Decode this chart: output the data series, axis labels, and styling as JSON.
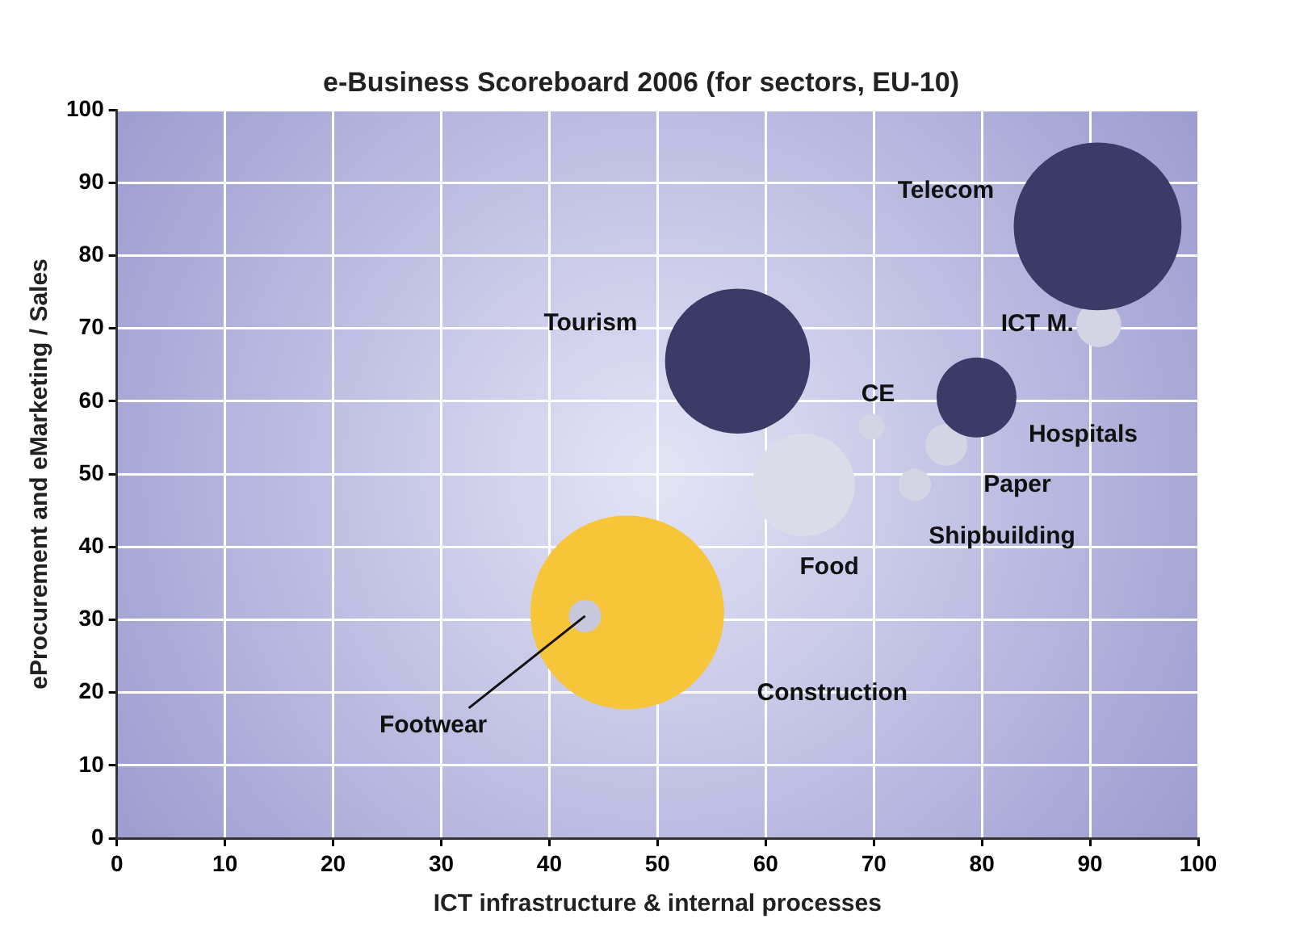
{
  "chart_data": {
    "type": "bubble",
    "title": "e-Business Scoreboard 2006 (for sectors, EU-10)",
    "xlabel": "ICT infrastructure & internal processes",
    "ylabel": "eProcurement and eMarketing / Sales",
    "xlim": [
      0,
      100
    ],
    "xticks": [
      0,
      10,
      20,
      30,
      40,
      50,
      60,
      70,
      80,
      90,
      100
    ],
    "ylim": [
      0,
      100
    ],
    "yticks": [
      0,
      10,
      20,
      30,
      40,
      50,
      60,
      70,
      80,
      90,
      100
    ],
    "grid": true,
    "legend": false,
    "series": [
      {
        "name": "Telecom",
        "color": "#3b3b68",
        "x": [
          90.7
        ],
        "values": [
          84
        ],
        "sizes": [
          0.75
        ]
      },
      {
        "name": "Tourism",
        "color": "#3b3b68",
        "x": [
          57.4
        ],
        "values": [
          65.5
        ],
        "sizes": [
          0.56
        ]
      },
      {
        "name": "ICT M.",
        "color": "#d4d4e4",
        "x": [
          90.8
        ],
        "values": [
          70.5
        ],
        "sizes": [
          0.054
        ]
      },
      {
        "name": "CE",
        "color": "#d4d4e4",
        "x": [
          69.8
        ],
        "values": [
          56.5
        ],
        "sizes": [
          0.018
        ]
      },
      {
        "name": "Hospitals",
        "color": "#3b3b68",
        "x": [
          79.5
        ],
        "values": [
          60.5
        ],
        "sizes": [
          0.17
        ]
      },
      {
        "name": "Paper",
        "color": "#d4d4e4",
        "x": [
          76.7
        ],
        "values": [
          54
        ],
        "sizes": [
          0.047
        ]
      },
      {
        "name": "Shipbuilding",
        "color": "#d4d4e4",
        "x": [
          73.8
        ],
        "values": [
          48.5
        ],
        "sizes": [
          0.028
        ]
      },
      {
        "name": "Food",
        "color": "#dcdce8",
        "x": [
          63.5
        ],
        "values": [
          48.5
        ],
        "sizes": [
          0.28
        ]
      },
      {
        "name": "Footwear",
        "color": "#c8c8dc",
        "x": [
          43.3
        ],
        "values": [
          30.5
        ],
        "sizes": [
          0.028
        ]
      },
      {
        "name": "Construction",
        "color": "#f7c53a",
        "x": [
          47.2
        ],
        "values": [
          31
        ],
        "sizes": [
          1
        ]
      }
    ]
  }
}
